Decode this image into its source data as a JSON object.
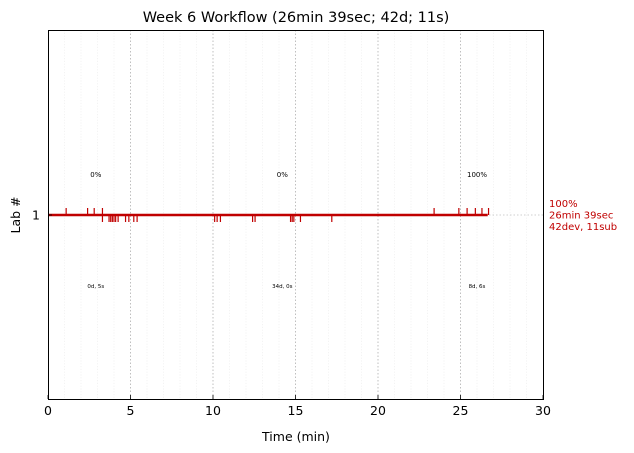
{
  "chart_data": {
    "type": "timeline",
    "title": "Week 6 Workflow (26min 39sec; 42d; 11s)",
    "xlabel": "Time (min)",
    "ylabel": "Lab #",
    "xlim": [
      0,
      30
    ],
    "xticks": [
      0,
      5,
      10,
      15,
      20,
      25,
      30
    ],
    "yticks": [
      1
    ],
    "grid": {
      "major_x": true,
      "minor_x": true,
      "y_reference": true
    },
    "colors": {
      "track": "#c00000",
      "right_label": "#c00000",
      "text": "#000000"
    },
    "series": [
      {
        "lab": 1,
        "track_end": 26.65,
        "up_ticks": [
          1.1,
          2.4,
          2.8,
          3.3,
          23.4,
          24.9,
          25.4,
          25.9,
          26.3,
          26.7
        ],
        "down_ticks": [
          3.3,
          3.7,
          3.8,
          3.9,
          4.0,
          4.1,
          4.25,
          4.7,
          4.9,
          5.2,
          5.4,
          10.1,
          10.25,
          10.45,
          12.4,
          12.55,
          14.7,
          14.8,
          14.9,
          15.3,
          17.2
        ],
        "segments": [
          {
            "x": 2.9,
            "percent": "0%",
            "duration": "0d, 5s"
          },
          {
            "x": 14.2,
            "percent": "0%",
            "duration": "34d, 0s"
          },
          {
            "x": 26.0,
            "percent": "100%",
            "duration": "8d, 6s"
          }
        ],
        "summary": [
          "100%",
          "26min 39sec",
          "42dev, 11sub"
        ]
      }
    ]
  }
}
